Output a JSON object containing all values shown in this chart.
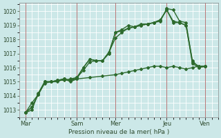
{
  "bg_color": "#cce8e8",
  "grid_color": "#ffffff",
  "line_color": "#2d6a2d",
  "xlabel_text": "Pression niveau de la mer( hPa )",
  "xtick_labels": [
    "Mar",
    "Sam",
    "Mer",
    "Jeu",
    "Ven"
  ],
  "xtick_positions": [
    0,
    48,
    84,
    132,
    168
  ],
  "xlim": [
    -6,
    180
  ],
  "ylim": [
    1012.5,
    1020.6
  ],
  "yticks": [
    1013,
    1014,
    1015,
    1016,
    1017,
    1018,
    1019,
    1020
  ],
  "series": [
    {
      "x": [
        0,
        6,
        12,
        18,
        24,
        30,
        36,
        42,
        48,
        54,
        60,
        66,
        72,
        78,
        84,
        90,
        96,
        102,
        108,
        114,
        120,
        126,
        132,
        138,
        144,
        150,
        156,
        162,
        168
      ],
      "y": [
        1012.8,
        1013.5,
        1014.1,
        1014.9,
        1015.0,
        1015.0,
        1015.2,
        1015.1,
        1015.2,
        1016.0,
        1016.6,
        1016.5,
        1016.5,
        1017.0,
        1018.5,
        1018.6,
        1018.8,
        1018.9,
        1019.0,
        1019.1,
        1019.2,
        1019.3,
        1020.2,
        1020.1,
        1019.3,
        1019.2,
        1016.4,
        1016.1,
        1016.1
      ],
      "marker": "D",
      "lw": 1.0
    },
    {
      "x": [
        0,
        6,
        12,
        18,
        24,
        30,
        36,
        42,
        48,
        54,
        60,
        66,
        72,
        78,
        84,
        90,
        96,
        102,
        108,
        114,
        120,
        126,
        132,
        138,
        144,
        150,
        156,
        162,
        168
      ],
      "y": [
        1012.8,
        1013.0,
        1014.2,
        1015.0,
        1015.0,
        1015.1,
        1015.1,
        1015.2,
        1015.3,
        1016.0,
        1016.6,
        1016.5,
        1016.5,
        1017.1,
        1018.5,
        1018.7,
        1019.0,
        1018.9,
        1019.1,
        1019.1,
        1019.2,
        1019.4,
        1020.1,
        1019.3,
        1019.2,
        1019.0,
        1016.3,
        1016.0,
        1016.1
      ],
      "marker": "D",
      "lw": 1.0
    },
    {
      "x": [
        0,
        6,
        12,
        18,
        24,
        30,
        36,
        42,
        48,
        60,
        72,
        84,
        90,
        96,
        102,
        108,
        114,
        120,
        126,
        132,
        138,
        144,
        150,
        156,
        162,
        168
      ],
      "y": [
        1012.8,
        1013.2,
        1014.1,
        1015.0,
        1015.0,
        1015.1,
        1015.2,
        1015.0,
        1015.2,
        1015.3,
        1015.4,
        1015.5,
        1015.6,
        1015.7,
        1015.8,
        1015.9,
        1016.0,
        1016.1,
        1016.1,
        1016.0,
        1016.1,
        1016.0,
        1015.9,
        1016.0,
        1016.1,
        1016.1
      ],
      "marker": "D",
      "lw": 1.0
    },
    {
      "x": [
        0,
        6,
        12,
        18,
        24,
        30,
        36,
        42,
        48,
        54,
        60,
        66,
        72,
        78,
        84,
        90,
        96,
        102,
        108,
        114,
        120,
        126,
        132,
        138,
        144,
        150,
        156,
        162,
        168
      ],
      "y": [
        1012.8,
        1013.2,
        1014.1,
        1015.0,
        1015.0,
        1015.1,
        1015.2,
        1015.1,
        1015.3,
        1015.8,
        1016.4,
        1016.5,
        1016.5,
        1017.1,
        1018.1,
        1018.5,
        1018.8,
        1018.9,
        1019.0,
        1019.1,
        1019.2,
        1019.4,
        1020.1,
        1019.2,
        1019.2,
        1019.0,
        1016.5,
        1016.0,
        1016.1
      ],
      "marker": "D",
      "lw": 1.0
    }
  ],
  "vline_color": "#b06060",
  "vline_positions": [
    0,
    48,
    84,
    132,
    168
  ]
}
